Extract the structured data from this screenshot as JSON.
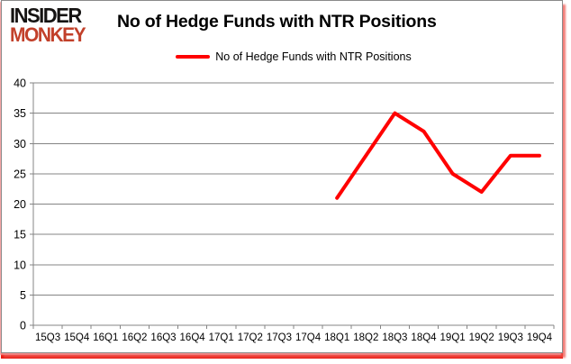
{
  "logo": {
    "line1": "INSIDER",
    "line2": "MONKEY",
    "line1_color": "#151312",
    "line2_color": "#c2402a"
  },
  "header": {
    "title": "No of Hedge Funds with NTR Positions"
  },
  "legend": {
    "label": "No of Hedge Funds with NTR Positions",
    "swatch_color": "#ff0000"
  },
  "colors": {
    "line": "#ff0000",
    "gridline": "#848484",
    "axis": "#848484",
    "frame_border": "#8a8a8a",
    "shadow_red": "#ea1b12"
  },
  "chart_data": {
    "type": "line",
    "title": "No of Hedge Funds with NTR Positions",
    "categories": [
      "15Q3",
      "15Q4",
      "16Q1",
      "16Q2",
      "16Q3",
      "16Q4",
      "17Q1",
      "17Q2",
      "17Q3",
      "17Q4",
      "18Q1",
      "18Q2",
      "18Q3",
      "18Q4",
      "19Q1",
      "19Q2",
      "19Q3",
      "19Q4"
    ],
    "series": [
      {
        "name": "No of Hedge Funds with NTR Positions",
        "color": "#ff0000",
        "values": [
          null,
          null,
          null,
          null,
          null,
          null,
          null,
          null,
          null,
          null,
          21,
          28,
          35,
          32,
          25,
          22,
          28,
          28
        ]
      }
    ],
    "xlabel": "",
    "ylabel": "",
    "ylim": [
      0,
      40
    ],
    "yticks": [
      0,
      5,
      10,
      15,
      20,
      25,
      30,
      35,
      40
    ],
    "grid": true,
    "legend_position": "top"
  }
}
